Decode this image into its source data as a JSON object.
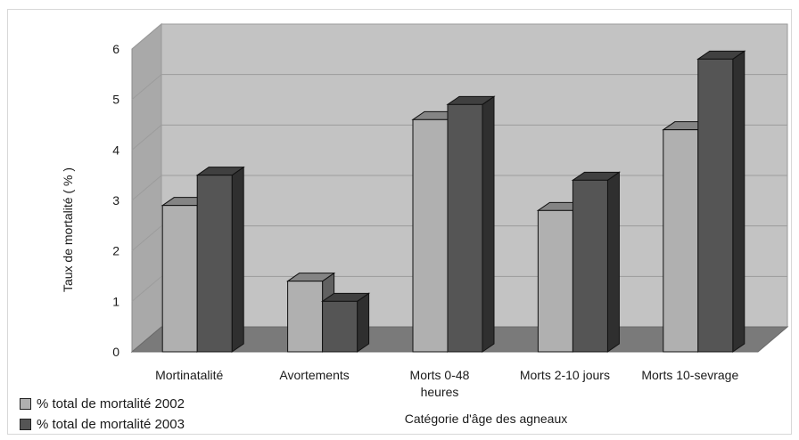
{
  "chart_data": {
    "type": "bar",
    "categories": [
      [
        "Mortinatalité"
      ],
      [
        "Avortements"
      ],
      [
        "Morts 0-48",
        "heures"
      ],
      [
        "Morts 2-10 jours"
      ],
      [
        "Morts 10-sevrage"
      ]
    ],
    "series": [
      {
        "name": "% total de mortalité 2002",
        "values": [
          2.9,
          1.4,
          4.6,
          2.8,
          4.4
        ],
        "color": "#b0b0b0"
      },
      {
        "name": "% total de mortalité 2003",
        "values": [
          3.5,
          1.0,
          4.9,
          3.4,
          5.8
        ],
        "color": "#555555"
      }
    ],
    "xlabel": "Catégorie d'âge des agneaux",
    "ylabel": "Taux de mortalité ( % )",
    "ylim": [
      0,
      6
    ],
    "yticks": [
      0,
      1,
      2,
      3,
      4,
      5,
      6
    ],
    "grid": true,
    "legend_position": "bottom-left",
    "style": "3d"
  }
}
